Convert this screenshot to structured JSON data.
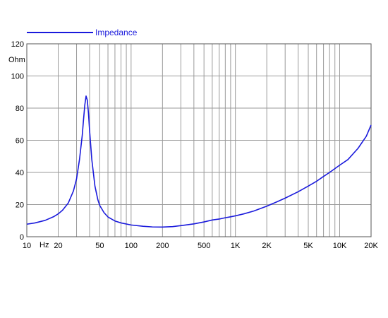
{
  "chart_data": {
    "type": "line",
    "title": "",
    "xlabel": "Hz",
    "ylabel": "Ohm",
    "x_scale": "log",
    "xlim": [
      10,
      20000
    ],
    "ylim": [
      0,
      120
    ],
    "grid": true,
    "legend_position": "top-left",
    "y_ticks": [
      0,
      20,
      40,
      60,
      80,
      100,
      120
    ],
    "x_tick_labels": [
      {
        "value": 10,
        "label": "10"
      },
      {
        "value": 20,
        "label": "20"
      },
      {
        "value": 50,
        "label": "50"
      },
      {
        "value": 100,
        "label": "100"
      },
      {
        "value": 200,
        "label": "200"
      },
      {
        "value": 500,
        "label": "500"
      },
      {
        "value": 1000,
        "label": "1K"
      },
      {
        "value": 2000,
        "label": "2K"
      },
      {
        "value": 5000,
        "label": "5K"
      },
      {
        "value": 10000,
        "label": "10K"
      },
      {
        "value": 20000,
        "label": "20K"
      }
    ],
    "series": [
      {
        "name": "Impedance",
        "color": "#1a1adc",
        "points": [
          [
            10,
            7.8
          ],
          [
            12,
            8.6
          ],
          [
            15,
            10.2
          ],
          [
            18,
            12.4
          ],
          [
            20,
            14.2
          ],
          [
            22,
            16.5
          ],
          [
            25,
            21.0
          ],
          [
            28,
            28.5
          ],
          [
            30,
            36.0
          ],
          [
            32,
            48.0
          ],
          [
            34,
            63.0
          ],
          [
            35,
            73.0
          ],
          [
            36,
            82.0
          ],
          [
            37,
            87.5
          ],
          [
            38,
            85.0
          ],
          [
            39,
            77.0
          ],
          [
            40,
            66.0
          ],
          [
            42,
            48.0
          ],
          [
            45,
            31.5
          ],
          [
            48,
            23.0
          ],
          [
            50,
            19.5
          ],
          [
            55,
            15.0
          ],
          [
            60,
            12.3
          ],
          [
            70,
            9.8
          ],
          [
            80,
            8.6
          ],
          [
            100,
            7.3
          ],
          [
            130,
            6.5
          ],
          [
            160,
            6.1
          ],
          [
            200,
            6.0
          ],
          [
            250,
            6.3
          ],
          [
            300,
            6.9
          ],
          [
            400,
            8.0
          ],
          [
            500,
            9.2
          ],
          [
            600,
            10.4
          ],
          [
            700,
            11.0
          ],
          [
            800,
            11.8
          ],
          [
            900,
            12.4
          ],
          [
            1000,
            13.0
          ],
          [
            1200,
            14.2
          ],
          [
            1500,
            16.0
          ],
          [
            2000,
            19.0
          ],
          [
            2500,
            21.7
          ],
          [
            3000,
            24.0
          ],
          [
            4000,
            28.0
          ],
          [
            5000,
            31.5
          ],
          [
            6000,
            34.5
          ],
          [
            7000,
            37.5
          ],
          [
            8000,
            40.0
          ],
          [
            10000,
            44.5
          ],
          [
            12000,
            48.0
          ],
          [
            15000,
            55.0
          ],
          [
            18000,
            62.5
          ],
          [
            20000,
            69.5
          ]
        ]
      }
    ]
  }
}
